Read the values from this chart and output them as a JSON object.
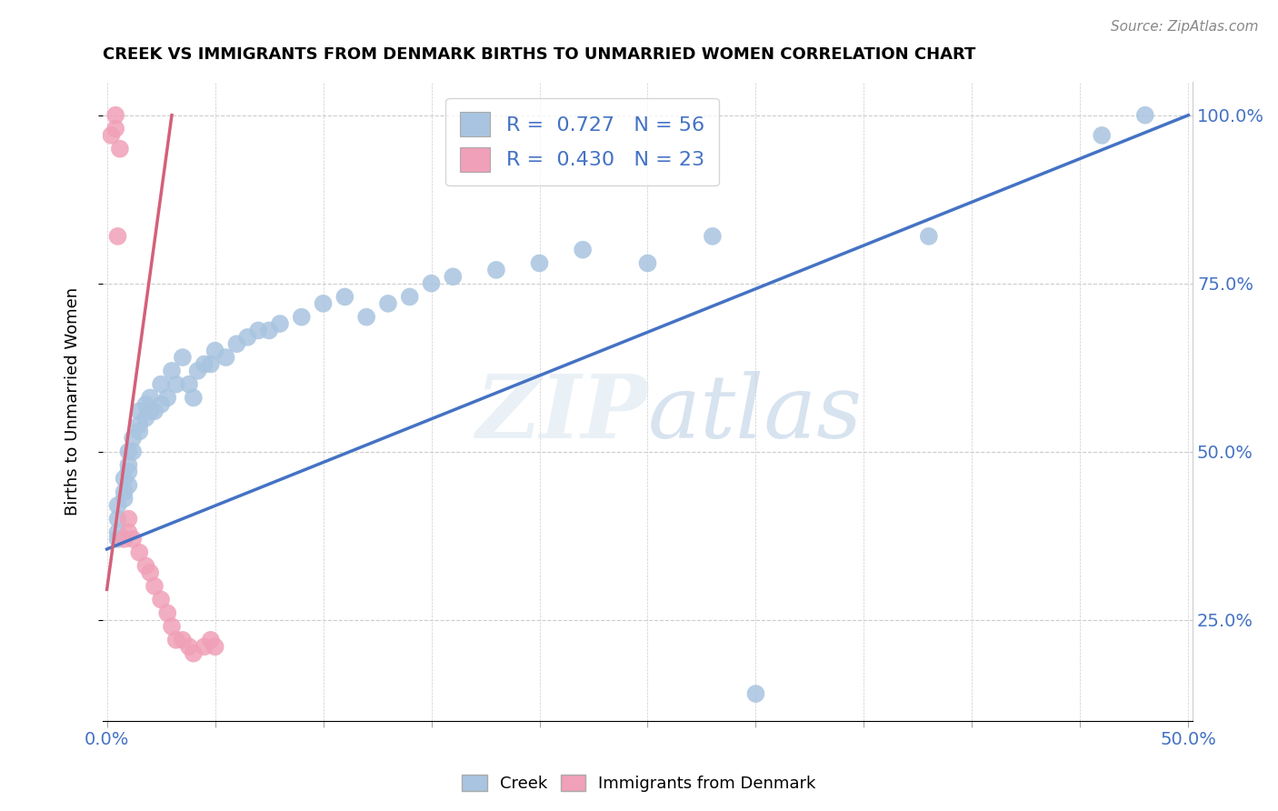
{
  "title": "CREEK VS IMMIGRANTS FROM DENMARK BIRTHS TO UNMARRIED WOMEN CORRELATION CHART",
  "source": "Source: ZipAtlas.com",
  "ylabel": "Births to Unmarried Women",
  "xlim": [
    0.0,
    0.5
  ],
  "ylim": [
    0.1,
    1.05
  ],
  "xticks": [
    0.0,
    0.05,
    0.1,
    0.15,
    0.2,
    0.25,
    0.3,
    0.35,
    0.4,
    0.45,
    0.5
  ],
  "yticks_right": [
    0.25,
    0.5,
    0.75,
    1.0
  ],
  "blue_R": 0.727,
  "blue_N": 56,
  "pink_R": 0.43,
  "pink_N": 23,
  "blue_color": "#a8c4e0",
  "pink_color": "#f0a0b8",
  "blue_line_color": "#4472c4",
  "pink_line_color": "#d4607a",
  "blue_scatter": [
    [
      0.005,
      0.37
    ],
    [
      0.005,
      0.4
    ],
    [
      0.005,
      0.42
    ],
    [
      0.005,
      0.38
    ],
    [
      0.008,
      0.44
    ],
    [
      0.008,
      0.46
    ],
    [
      0.008,
      0.43
    ],
    [
      0.01,
      0.48
    ],
    [
      0.01,
      0.5
    ],
    [
      0.01,
      0.45
    ],
    [
      0.01,
      0.47
    ],
    [
      0.012,
      0.52
    ],
    [
      0.012,
      0.5
    ],
    [
      0.015,
      0.54
    ],
    [
      0.015,
      0.56
    ],
    [
      0.015,
      0.53
    ],
    [
      0.018,
      0.55
    ],
    [
      0.018,
      0.57
    ],
    [
      0.02,
      0.58
    ],
    [
      0.02,
      0.56
    ],
    [
      0.022,
      0.56
    ],
    [
      0.025,
      0.6
    ],
    [
      0.025,
      0.57
    ],
    [
      0.028,
      0.58
    ],
    [
      0.03,
      0.62
    ],
    [
      0.032,
      0.6
    ],
    [
      0.035,
      0.64
    ],
    [
      0.038,
      0.6
    ],
    [
      0.04,
      0.58
    ],
    [
      0.042,
      0.62
    ],
    [
      0.045,
      0.63
    ],
    [
      0.048,
      0.63
    ],
    [
      0.05,
      0.65
    ],
    [
      0.055,
      0.64
    ],
    [
      0.06,
      0.66
    ],
    [
      0.065,
      0.67
    ],
    [
      0.07,
      0.68
    ],
    [
      0.075,
      0.68
    ],
    [
      0.08,
      0.69
    ],
    [
      0.09,
      0.7
    ],
    [
      0.1,
      0.72
    ],
    [
      0.11,
      0.73
    ],
    [
      0.12,
      0.7
    ],
    [
      0.13,
      0.72
    ],
    [
      0.14,
      0.73
    ],
    [
      0.15,
      0.75
    ],
    [
      0.16,
      0.76
    ],
    [
      0.18,
      0.77
    ],
    [
      0.2,
      0.78
    ],
    [
      0.22,
      0.8
    ],
    [
      0.25,
      0.78
    ],
    [
      0.28,
      0.82
    ],
    [
      0.3,
      0.14
    ],
    [
      0.38,
      0.82
    ],
    [
      0.46,
      0.97
    ],
    [
      0.48,
      1.0
    ]
  ],
  "pink_scatter": [
    [
      0.002,
      0.97
    ],
    [
      0.004,
      1.0
    ],
    [
      0.004,
      0.98
    ],
    [
      0.006,
      0.95
    ],
    [
      0.005,
      0.82
    ],
    [
      0.008,
      0.37
    ],
    [
      0.01,
      0.4
    ],
    [
      0.01,
      0.38
    ],
    [
      0.012,
      0.37
    ],
    [
      0.015,
      0.35
    ],
    [
      0.018,
      0.33
    ],
    [
      0.02,
      0.32
    ],
    [
      0.022,
      0.3
    ],
    [
      0.025,
      0.28
    ],
    [
      0.028,
      0.26
    ],
    [
      0.03,
      0.24
    ],
    [
      0.032,
      0.22
    ],
    [
      0.035,
      0.22
    ],
    [
      0.038,
      0.21
    ],
    [
      0.04,
      0.2
    ],
    [
      0.045,
      0.21
    ],
    [
      0.048,
      0.22
    ],
    [
      0.05,
      0.21
    ]
  ],
  "blue_trend_x": [
    0.0,
    0.5
  ],
  "blue_trend_y": [
    0.355,
    1.0
  ],
  "pink_trend_x": [
    0.0,
    0.03
  ],
  "pink_trend_y": [
    0.295,
    1.0
  ]
}
